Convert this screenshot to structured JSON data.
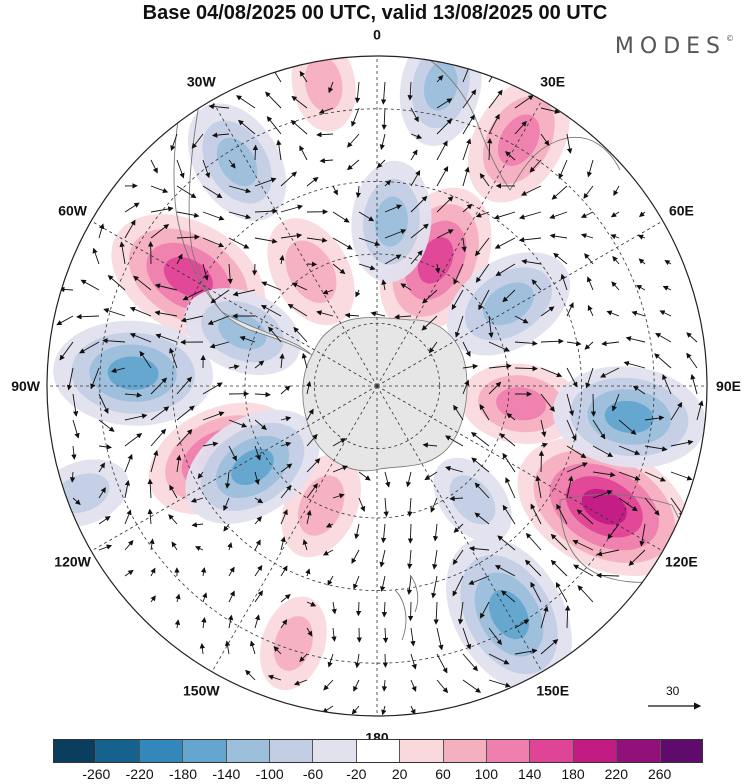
{
  "title": "Base 04/08/2025 00 UTC, valid 13/08/2025 00 UTC",
  "logo": {
    "text": "MODES",
    "mark": "©"
  },
  "longitude_labels": [
    {
      "text": "0",
      "angle_deg": 0
    },
    {
      "text": "30E",
      "angle_deg": 30
    },
    {
      "text": "60E",
      "angle_deg": 60
    },
    {
      "text": "90E",
      "angle_deg": 90
    },
    {
      "text": "120E",
      "angle_deg": 120
    },
    {
      "text": "150E",
      "angle_deg": 150
    },
    {
      "text": "180",
      "angle_deg": 180
    },
    {
      "text": "150W",
      "angle_deg": 210
    },
    {
      "text": "120W",
      "angle_deg": 240
    },
    {
      "text": "90W",
      "angle_deg": 270
    },
    {
      "text": "60W",
      "angle_deg": 300
    },
    {
      "text": "30W",
      "angle_deg": 330
    }
  ],
  "reference_vector": {
    "label": "30"
  },
  "colorbar": {
    "colors": [
      "#0b3d5f",
      "#15628f",
      "#3387bb",
      "#63a5cf",
      "#9cbfdc",
      "#c3cde4",
      "#e2e2ef",
      "#ffffff",
      "#fad9dd",
      "#f5b0c0",
      "#ee7fae",
      "#e04497",
      "#c21b84",
      "#92107a",
      "#5e0b6b"
    ],
    "ticks": [
      "-260",
      "-220",
      "-180",
      "-140",
      "-100",
      "-60",
      "-20",
      "20",
      "60",
      "100",
      "140",
      "180",
      "220",
      "260"
    ]
  },
  "anomaly_cells": [
    {
      "id": "a1",
      "value": 200,
      "lon": 118,
      "colat": 0.78
    },
    {
      "id": "a2",
      "value": 170,
      "lon": 300,
      "colat": 0.66
    },
    {
      "id": "a3",
      "value": 150,
      "lon": 25,
      "colat": 0.42
    },
    {
      "id": "a4",
      "value": 150,
      "lon": 245,
      "colat": 0.52
    },
    {
      "id": "a5",
      "value": 120,
      "lon": 30,
      "colat": 0.86
    },
    {
      "id": "a6",
      "value": 100,
      "lon": 97,
      "colat": 0.44
    },
    {
      "id": "a7",
      "value": 90,
      "lon": 330,
      "colat": 0.4
    },
    {
      "id": "a8",
      "value": 80,
      "lon": 205,
      "colat": 0.4
    },
    {
      "id": "a9",
      "value": 60,
      "lon": 198,
      "colat": 0.82
    },
    {
      "id": "a10",
      "value": 60,
      "lon": 350,
      "colat": 0.93
    },
    {
      "id": "b1",
      "value": -170,
      "lon": 150,
      "colat": 0.8
    },
    {
      "id": "b2",
      "value": -160,
      "lon": 273,
      "colat": 0.74
    },
    {
      "id": "b3",
      "value": -150,
      "lon": 97,
      "colat": 0.77
    },
    {
      "id": "b4",
      "value": -140,
      "lon": 237,
      "colat": 0.45
    },
    {
      "id": "b5",
      "value": -120,
      "lon": 58,
      "colat": 0.47
    },
    {
      "id": "b6",
      "value": -110,
      "lon": 328,
      "colat": 0.8
    },
    {
      "id": "b7",
      "value": -100,
      "lon": 5,
      "colat": 0.5
    },
    {
      "id": "b8",
      "value": -100,
      "lon": 12,
      "colat": 0.93
    },
    {
      "id": "b9",
      "value": -100,
      "lon": 292,
      "colat": 0.44
    },
    {
      "id": "b10",
      "value": -60,
      "lon": 140,
      "colat": 0.45
    },
    {
      "id": "b11",
      "value": -60,
      "lon": 250,
      "colat": 0.95
    }
  ]
}
